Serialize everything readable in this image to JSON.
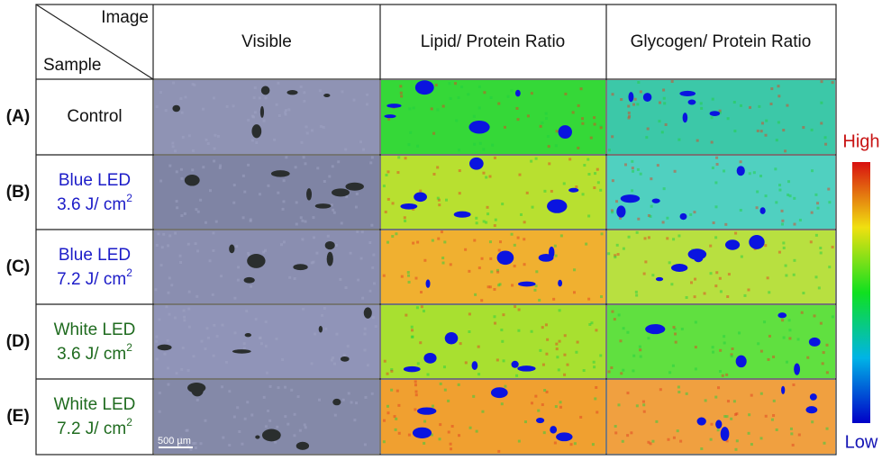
{
  "header": {
    "corner_top": "Image",
    "corner_bottom": "Sample",
    "columns": [
      "Visible",
      "Lipid/ Protein Ratio",
      "Glycogen/ Protein Ratio"
    ]
  },
  "rows": [
    {
      "id": "(A)",
      "line1": "Control"
    },
    {
      "id": "(B)",
      "line1": "Blue LED",
      "line2": "3.6 J/ cm",
      "sup": "2"
    },
    {
      "id": "(C)",
      "line1": "Blue LED",
      "line2": "7.2 J/ cm",
      "sup": "2"
    },
    {
      "id": "(D)",
      "line1": "White LED",
      "line2": "3.6 J/ cm",
      "sup": "2"
    },
    {
      "id": "(E)",
      "line1": "White LED",
      "line2": "7.2 J/ cm",
      "sup": "2"
    }
  ],
  "scale_bar": "500 µm",
  "colorbar": {
    "high": "High",
    "low": "Low"
  }
}
